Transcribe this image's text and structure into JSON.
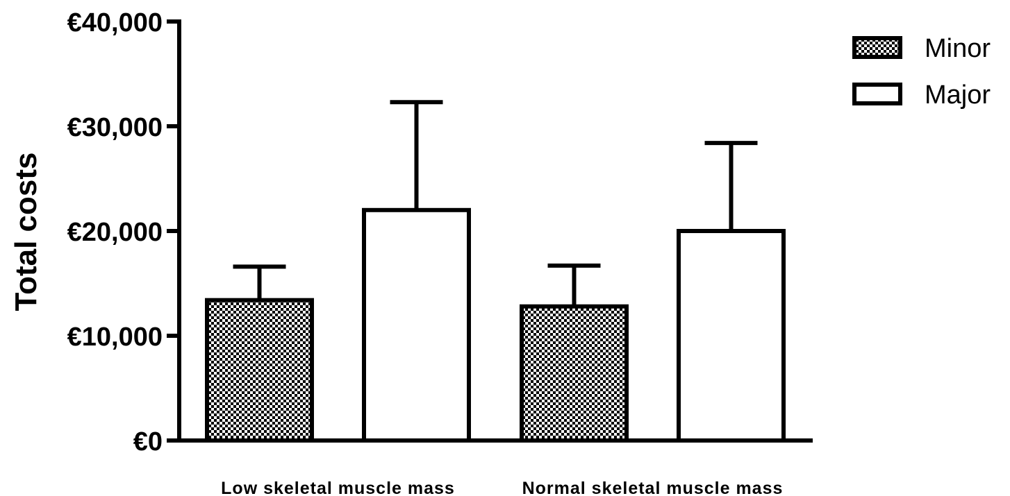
{
  "chart_data": {
    "type": "bar",
    "ylabel": "Total costs",
    "ylim": [
      0,
      40000
    ],
    "yticks": [
      {
        "value": 0,
        "label": "€0"
      },
      {
        "value": 10000,
        "label": "€10,000"
      },
      {
        "value": 20000,
        "label": "€20,000"
      },
      {
        "value": 30000,
        "label": "€30,000"
      },
      {
        "value": 40000,
        "label": "€40,000"
      }
    ],
    "categories": [
      "Low skeletal muscle mass",
      "Normal skeletal muscle mass"
    ],
    "series": [
      {
        "name": "Minor",
        "pattern": "checkered",
        "values": [
          13400,
          12800
        ],
        "error_upper": [
          16600,
          16700
        ]
      },
      {
        "name": "Major",
        "pattern": "white",
        "values": [
          22000,
          20000
        ],
        "error_upper": [
          32300,
          28400
        ]
      }
    ],
    "legend_position": "top-right",
    "grid": false
  }
}
